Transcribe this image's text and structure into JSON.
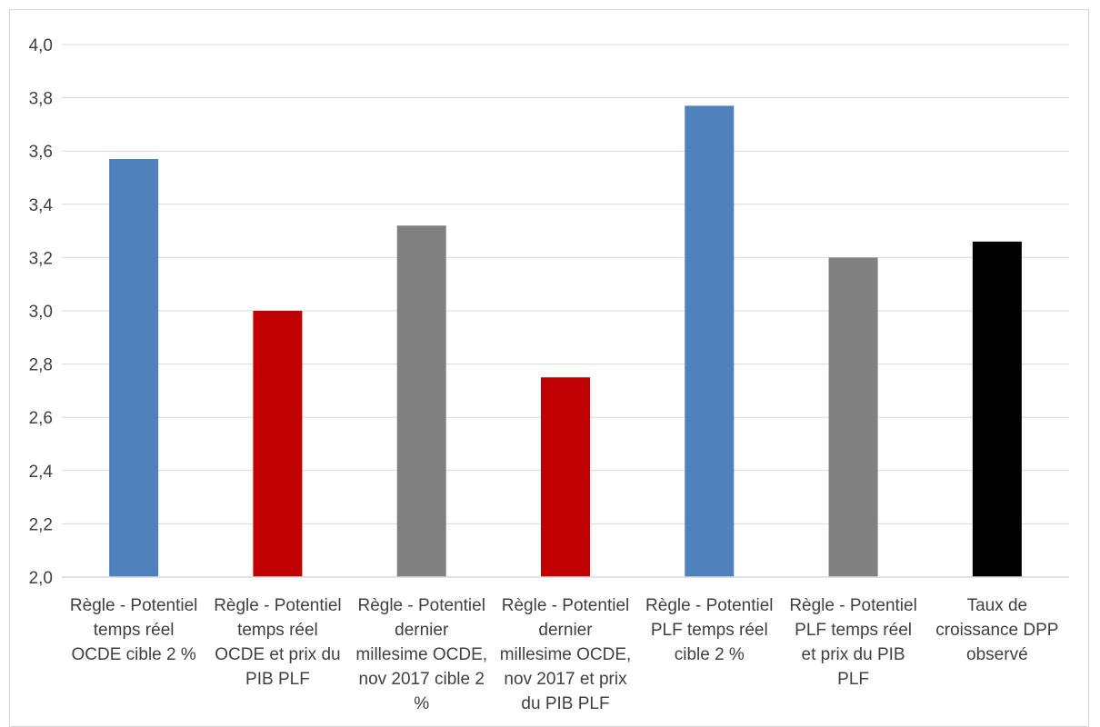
{
  "chart_data": {
    "type": "bar",
    "title": "",
    "xlabel": "",
    "ylabel": "",
    "ylim": [
      2.0,
      4.0
    ],
    "yticks": [
      "2,0",
      "2,2",
      "2,4",
      "2,6",
      "2,8",
      "3,0",
      "3,2",
      "3,4",
      "3,6",
      "3,8",
      "4,0"
    ],
    "grid": true,
    "legend": "none",
    "categories": [
      [
        "Règle - Potentiel",
        "temps réel",
        "OCDE cible 2 %"
      ],
      [
        "Règle - Potentiel",
        "temps réel",
        "OCDE et prix du",
        "PIB PLF"
      ],
      [
        "Règle - Potentiel",
        "dernier",
        "millesime OCDE,",
        "nov 2017 cible 2",
        "%"
      ],
      [
        "Règle - Potentiel",
        "dernier",
        "millesime OCDE,",
        "nov 2017 et prix",
        "du PIB PLF"
      ],
      [
        "Règle - Potentiel",
        "PLF temps réel",
        "cible 2 %"
      ],
      [
        "Règle - Potentiel",
        "PLF temps réel",
        "et prix du PIB",
        "PLF"
      ],
      [
        "Taux de",
        "croissance DPP",
        "observé"
      ]
    ],
    "values": [
      3.57,
      3.0,
      3.32,
      2.75,
      3.77,
      3.2,
      3.26
    ],
    "colors": [
      "#4f81bd",
      "#c00000",
      "#808080",
      "#c00000",
      "#4f81bd",
      "#808080",
      "#000000"
    ]
  }
}
